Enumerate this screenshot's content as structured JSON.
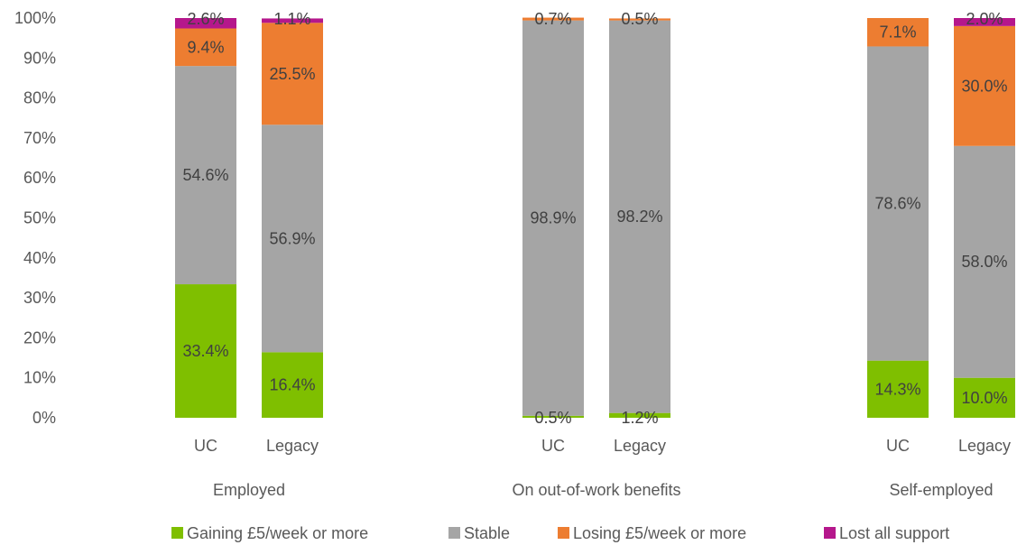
{
  "chart_data": {
    "type": "bar",
    "stacked": true,
    "percent_axis": true,
    "y_ticks": [
      "0%",
      "10%",
      "20%",
      "30%",
      "40%",
      "50%",
      "60%",
      "70%",
      "80%",
      "90%",
      "100%"
    ],
    "ylim": [
      0,
      100
    ],
    "grid": false,
    "legend_position": "bottom",
    "groups": [
      {
        "name": "Employed",
        "bars": [
          {
            "label": "UC",
            "values": [
              33.4,
              54.6,
              9.4,
              2.6
            ],
            "value_labels": [
              "33.4%",
              "54.6%",
              "9.4%",
              "2.6%"
            ]
          },
          {
            "label": "Legacy",
            "values": [
              16.4,
              56.9,
              25.5,
              1.1
            ],
            "value_labels": [
              "16.4%",
              "56.9%",
              "25.5%",
              "1.1%"
            ]
          }
        ]
      },
      {
        "name": "On out-of-work benefits",
        "bars": [
          {
            "label": "UC",
            "values": [
              0.5,
              98.9,
              0.7,
              0
            ],
            "value_labels": [
              "0.5%",
              "98.9%",
              "0.7%",
              ""
            ]
          },
          {
            "label": "Legacy",
            "values": [
              1.2,
              98.2,
              0.5,
              0
            ],
            "value_labels": [
              "1.2%",
              "98.2%",
              "0.5%",
              ""
            ]
          }
        ]
      },
      {
        "name": "Self-employed",
        "bars": [
          {
            "label": "UC",
            "values": [
              14.3,
              78.6,
              7.1,
              0
            ],
            "value_labels": [
              "14.3%",
              "78.6%",
              "7.1%",
              ""
            ]
          },
          {
            "label": "Legacy",
            "values": [
              10.0,
              58.0,
              30.0,
              2.0
            ],
            "value_labels": [
              "10.0%",
              "58.0%",
              "30.0%",
              "2.0%"
            ]
          }
        ]
      }
    ],
    "series": [
      {
        "name": "Gaining £5/week or more",
        "color": "#7fbf00"
      },
      {
        "name": "Stable",
        "color": "#a5a5a5"
      },
      {
        "name": "Losing £5/week or more",
        "color": "#ed7d31"
      },
      {
        "name": "Lost all support",
        "color": "#b5178c"
      }
    ]
  }
}
